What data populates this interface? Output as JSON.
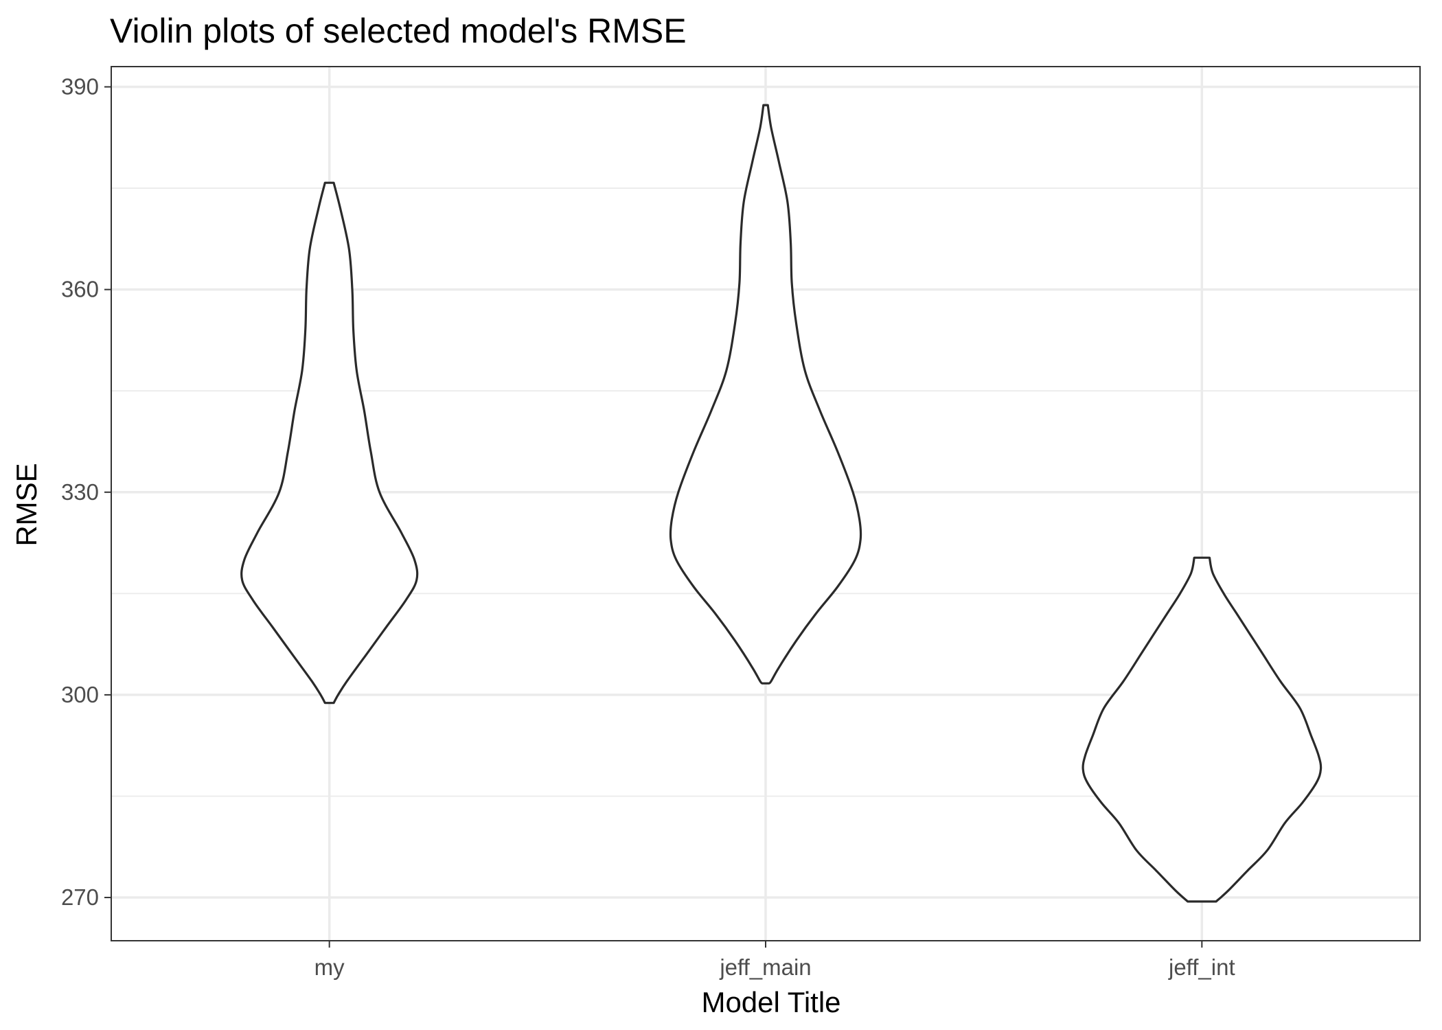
{
  "chart_data": {
    "type": "violin",
    "title": "Violin plots of selected model's RMSE",
    "xlabel": "Model Title",
    "ylabel": "RMSE",
    "categories": [
      "my",
      "jeff_main",
      "jeff_int"
    ],
    "yticks": [
      270,
      300,
      330,
      360,
      390
    ],
    "ylim": [
      263.6,
      393.0
    ],
    "grid": true,
    "series": [
      {
        "category": "my",
        "min": 298.8,
        "max": 375.8,
        "density": [
          [
            375.8,
            0.04
          ],
          [
            372,
            0.1
          ],
          [
            366,
            0.18
          ],
          [
            360,
            0.21
          ],
          [
            354,
            0.22
          ],
          [
            348,
            0.25
          ],
          [
            342,
            0.32
          ],
          [
            336,
            0.38
          ],
          [
            330,
            0.46
          ],
          [
            324,
            0.66
          ],
          [
            320,
            0.78
          ],
          [
            317,
            0.8
          ],
          [
            314,
            0.7
          ],
          [
            310,
            0.52
          ],
          [
            306,
            0.34
          ],
          [
            302,
            0.16
          ],
          [
            300,
            0.08
          ],
          [
            298.8,
            0.04
          ]
        ]
      },
      {
        "category": "jeff_main",
        "min": 301.7,
        "max": 387.3,
        "density": [
          [
            387.3,
            0.02
          ],
          [
            384,
            0.05
          ],
          [
            379,
            0.12
          ],
          [
            373,
            0.2
          ],
          [
            367,
            0.23
          ],
          [
            361,
            0.24
          ],
          [
            355,
            0.28
          ],
          [
            348,
            0.36
          ],
          [
            342,
            0.5
          ],
          [
            336,
            0.66
          ],
          [
            330,
            0.8
          ],
          [
            326,
            0.86
          ],
          [
            323,
            0.87
          ],
          [
            320,
            0.82
          ],
          [
            316,
            0.66
          ],
          [
            312,
            0.46
          ],
          [
            308,
            0.28
          ],
          [
            304,
            0.12
          ],
          [
            302,
            0.05
          ],
          [
            301.7,
            0.03
          ]
        ]
      },
      {
        "category": "jeff_int",
        "min": 269.4,
        "max": 320.3,
        "density": [
          [
            320.3,
            0.07
          ],
          [
            318,
            0.1
          ],
          [
            315,
            0.2
          ],
          [
            312,
            0.32
          ],
          [
            309,
            0.44
          ],
          [
            306,
            0.56
          ],
          [
            302,
            0.72
          ],
          [
            298,
            0.9
          ],
          [
            294,
            1.0
          ],
          [
            291,
            1.07
          ],
          [
            289,
            1.09
          ],
          [
            287,
            1.05
          ],
          [
            284,
            0.92
          ],
          [
            281,
            0.76
          ],
          [
            277,
            0.6
          ],
          [
            274,
            0.42
          ],
          [
            271,
            0.24
          ],
          [
            269.4,
            0.13
          ]
        ]
      }
    ]
  }
}
